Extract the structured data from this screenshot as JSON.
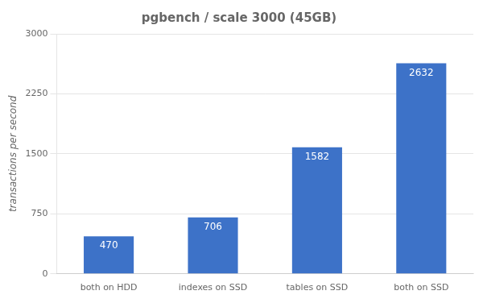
{
  "chart_data": {
    "type": "bar",
    "title": "pgbench / scale 3000 (45GB)",
    "categories": [
      "both on HDD",
      "indexes on SSD",
      "tables on SSD",
      "both on SSD"
    ],
    "values": [
      470,
      706,
      1582,
      2632
    ],
    "color": "#3d72c8",
    "ylabel": "transactions per second",
    "ylim": [
      0,
      3000
    ],
    "yticks": [
      0,
      750,
      1500,
      2250,
      3000
    ],
    "grid": true,
    "data_labels": true
  }
}
